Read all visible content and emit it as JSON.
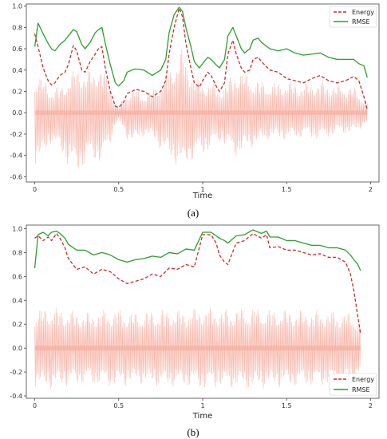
{
  "chart_data": [
    {
      "type": "line",
      "caption": "(a)",
      "xlabel": "Time",
      "ylabel": "",
      "xlim": [
        -0.05,
        2.05
      ],
      "ylim": [
        -0.65,
        1.02
      ],
      "xticks": [
        "0",
        "0.5",
        "1",
        "1.5",
        "2"
      ],
      "xtick_values": [
        0,
        0.5,
        1,
        1.5,
        2
      ],
      "yticks": [
        "-0.6",
        "-0.4",
        "-0.2",
        "0.0",
        "0.2",
        "0.4",
        "0.6",
        "0.8",
        "1.0"
      ],
      "ytick_values": [
        -0.6,
        -0.4,
        -0.2,
        0.0,
        0.2,
        0.4,
        0.6,
        0.8,
        1.0
      ],
      "legend_position": "top-right",
      "series": [
        {
          "name": "Energy",
          "style": "dashed",
          "color": "#d62728",
          "x": [
            0,
            0.02,
            0.05,
            0.08,
            0.1,
            0.12,
            0.15,
            0.18,
            0.2,
            0.23,
            0.25,
            0.28,
            0.3,
            0.33,
            0.36,
            0.38,
            0.4,
            0.42,
            0.45,
            0.48,
            0.5,
            0.53,
            0.55,
            0.58,
            0.6,
            0.65,
            0.7,
            0.75,
            0.78,
            0.8,
            0.83,
            0.86,
            0.88,
            0.9,
            0.93,
            0.95,
            0.98,
            1.0,
            1.03,
            1.05,
            1.08,
            1.1,
            1.13,
            1.15,
            1.18,
            1.2,
            1.23,
            1.25,
            1.28,
            1.3,
            1.33,
            1.35,
            1.4,
            1.45,
            1.5,
            1.55,
            1.6,
            1.65,
            1.7,
            1.75,
            1.8,
            1.85,
            1.9,
            1.93,
            1.96,
            1.98
          ],
          "y": [
            0.74,
            0.62,
            0.42,
            0.3,
            0.26,
            0.28,
            0.35,
            0.38,
            0.45,
            0.63,
            0.58,
            0.4,
            0.38,
            0.48,
            0.55,
            0.6,
            0.62,
            0.42,
            0.2,
            0.06,
            0.05,
            0.1,
            0.18,
            0.2,
            0.22,
            0.2,
            0.15,
            0.2,
            0.3,
            0.55,
            0.8,
            0.98,
            0.9,
            0.65,
            0.42,
            0.28,
            0.24,
            0.3,
            0.38,
            0.35,
            0.25,
            0.2,
            0.28,
            0.55,
            0.68,
            0.55,
            0.42,
            0.38,
            0.4,
            0.5,
            0.52,
            0.48,
            0.4,
            0.38,
            0.32,
            0.3,
            0.28,
            0.32,
            0.35,
            0.3,
            0.28,
            0.3,
            0.34,
            0.3,
            0.15,
            0.03
          ]
        },
        {
          "name": "RMSE",
          "style": "solid",
          "color": "#2ca02c",
          "x": [
            0,
            0.02,
            0.05,
            0.08,
            0.1,
            0.12,
            0.15,
            0.18,
            0.2,
            0.23,
            0.25,
            0.28,
            0.3,
            0.33,
            0.36,
            0.38,
            0.4,
            0.42,
            0.45,
            0.48,
            0.5,
            0.53,
            0.55,
            0.58,
            0.6,
            0.65,
            0.7,
            0.75,
            0.78,
            0.8,
            0.83,
            0.86,
            0.88,
            0.9,
            0.93,
            0.95,
            0.98,
            1.0,
            1.03,
            1.05,
            1.08,
            1.1,
            1.13,
            1.15,
            1.18,
            1.2,
            1.23,
            1.25,
            1.28,
            1.3,
            1.33,
            1.35,
            1.4,
            1.45,
            1.5,
            1.55,
            1.6,
            1.65,
            1.7,
            1.75,
            1.8,
            1.85,
            1.9,
            1.93,
            1.96,
            1.98
          ],
          "y": [
            0.62,
            0.84,
            0.74,
            0.65,
            0.6,
            0.58,
            0.64,
            0.68,
            0.72,
            0.78,
            0.76,
            0.64,
            0.6,
            0.66,
            0.75,
            0.78,
            0.8,
            0.65,
            0.45,
            0.28,
            0.25,
            0.3,
            0.38,
            0.4,
            0.41,
            0.4,
            0.35,
            0.4,
            0.5,
            0.75,
            0.92,
            0.99,
            0.95,
            0.8,
            0.62,
            0.48,
            0.42,
            0.46,
            0.52,
            0.5,
            0.45,
            0.42,
            0.5,
            0.72,
            0.8,
            0.72,
            0.6,
            0.56,
            0.6,
            0.68,
            0.7,
            0.66,
            0.6,
            0.58,
            0.6,
            0.56,
            0.54,
            0.55,
            0.56,
            0.52,
            0.5,
            0.5,
            0.5,
            0.46,
            0.44,
            0.33
          ]
        }
      ],
      "waveform_envelope": {
        "color": "#f4a090",
        "x": [
          0,
          0.05,
          0.1,
          0.15,
          0.2,
          0.25,
          0.3,
          0.35,
          0.4,
          0.45,
          0.48,
          0.5,
          0.52,
          0.55,
          0.6,
          0.65,
          0.7,
          0.75,
          0.8,
          0.85,
          0.88,
          0.9,
          0.95,
          1.0,
          1.05,
          1.1,
          1.15,
          1.2,
          1.25,
          1.3,
          1.4,
          1.5,
          1.6,
          1.7,
          1.8,
          1.9,
          1.98
        ],
        "upper": [
          0.35,
          0.33,
          0.22,
          0.25,
          0.32,
          0.45,
          0.38,
          0.42,
          0.45,
          0.25,
          0.1,
          0.06,
          0.12,
          0.2,
          0.22,
          0.18,
          0.22,
          0.3,
          0.4,
          0.55,
          0.62,
          0.5,
          0.35,
          0.28,
          0.3,
          0.22,
          0.3,
          0.42,
          0.38,
          0.32,
          0.28,
          0.3,
          0.27,
          0.3,
          0.26,
          0.25,
          0.1
        ],
        "lower": [
          -0.5,
          -0.45,
          -0.28,
          -0.4,
          -0.5,
          -0.6,
          -0.5,
          -0.45,
          -0.5,
          -0.3,
          -0.12,
          -0.08,
          -0.15,
          -0.25,
          -0.3,
          -0.22,
          -0.25,
          -0.35,
          -0.45,
          -0.5,
          -0.6,
          -0.5,
          -0.45,
          -0.4,
          -0.35,
          -0.28,
          -0.35,
          -0.42,
          -0.38,
          -0.32,
          -0.25,
          -0.26,
          -0.23,
          -0.26,
          -0.2,
          -0.2,
          -0.1
        ]
      }
    },
    {
      "type": "line",
      "caption": "(b)",
      "xlabel": "Time",
      "ylabel": "",
      "xlim": [
        -0.05,
        2.05
      ],
      "ylim": [
        -0.42,
        1.03
      ],
      "xticks": [
        "0",
        "0.5",
        "1",
        "1.5",
        "2"
      ],
      "xtick_values": [
        0,
        0.5,
        1,
        1.5,
        2
      ],
      "yticks": [
        "-0.4",
        "-0.2",
        "0.0",
        "0.2",
        "0.4",
        "0.6",
        "0.8",
        "1.0"
      ],
      "ytick_values": [
        -0.4,
        -0.2,
        0.0,
        0.2,
        0.4,
        0.6,
        0.8,
        1.0
      ],
      "legend_position": "bottom-right",
      "series": [
        {
          "name": "Energy",
          "style": "dashed",
          "color": "#d62728",
          "x": [
            0,
            0.02,
            0.05,
            0.08,
            0.1,
            0.13,
            0.15,
            0.18,
            0.2,
            0.25,
            0.3,
            0.35,
            0.4,
            0.45,
            0.5,
            0.55,
            0.6,
            0.65,
            0.7,
            0.75,
            0.8,
            0.85,
            0.9,
            0.95,
            1.0,
            1.05,
            1.08,
            1.1,
            1.13,
            1.15,
            1.2,
            1.25,
            1.3,
            1.35,
            1.38,
            1.4,
            1.45,
            1.5,
            1.55,
            1.6,
            1.65,
            1.7,
            1.75,
            1.8,
            1.85,
            1.88,
            1.9,
            1.92,
            1.94
          ],
          "y": [
            0.92,
            0.94,
            0.9,
            0.93,
            0.9,
            0.96,
            0.92,
            0.84,
            0.75,
            0.66,
            0.68,
            0.62,
            0.66,
            0.64,
            0.58,
            0.54,
            0.56,
            0.58,
            0.62,
            0.6,
            0.67,
            0.66,
            0.7,
            0.68,
            0.95,
            0.95,
            0.88,
            0.78,
            0.72,
            0.7,
            0.88,
            0.9,
            0.96,
            0.92,
            0.95,
            0.84,
            0.85,
            0.82,
            0.82,
            0.8,
            0.78,
            0.79,
            0.76,
            0.76,
            0.72,
            0.62,
            0.48,
            0.3,
            0.12
          ]
        },
        {
          "name": "RMSE",
          "style": "solid",
          "color": "#2ca02c",
          "x": [
            0,
            0.02,
            0.05,
            0.08,
            0.1,
            0.13,
            0.15,
            0.18,
            0.2,
            0.25,
            0.3,
            0.35,
            0.4,
            0.45,
            0.5,
            0.55,
            0.6,
            0.65,
            0.7,
            0.75,
            0.8,
            0.85,
            0.9,
            0.95,
            1.0,
            1.05,
            1.08,
            1.1,
            1.13,
            1.15,
            1.2,
            1.25,
            1.3,
            1.35,
            1.38,
            1.4,
            1.45,
            1.5,
            1.55,
            1.6,
            1.65,
            1.7,
            1.75,
            1.8,
            1.85,
            1.88,
            1.9,
            1.92,
            1.94
          ],
          "y": [
            0.67,
            0.95,
            0.97,
            0.94,
            0.97,
            0.98,
            0.96,
            0.92,
            0.87,
            0.82,
            0.82,
            0.78,
            0.8,
            0.78,
            0.74,
            0.72,
            0.74,
            0.75,
            0.77,
            0.76,
            0.8,
            0.79,
            0.83,
            0.82,
            0.97,
            0.97,
            0.94,
            0.92,
            0.9,
            0.88,
            0.94,
            0.95,
            0.99,
            0.96,
            0.98,
            0.93,
            0.93,
            0.9,
            0.9,
            0.88,
            0.86,
            0.86,
            0.84,
            0.84,
            0.82,
            0.78,
            0.74,
            0.71,
            0.65
          ]
        }
      ],
      "waveform_envelope": {
        "color": "#f4a090",
        "x": [
          0,
          0.1,
          0.2,
          0.3,
          0.4,
          0.5,
          0.6,
          0.7,
          0.8,
          0.9,
          1.0,
          1.1,
          1.2,
          1.3,
          1.4,
          1.5,
          1.6,
          1.7,
          1.8,
          1.9,
          1.94
        ],
        "upper": [
          0.33,
          0.35,
          0.32,
          0.3,
          0.32,
          0.33,
          0.3,
          0.32,
          0.33,
          0.32,
          0.35,
          0.33,
          0.34,
          0.35,
          0.33,
          0.33,
          0.32,
          0.32,
          0.31,
          0.3,
          0.2
        ],
        "lower": [
          -0.33,
          -0.35,
          -0.32,
          -0.3,
          -0.32,
          -0.33,
          -0.3,
          -0.32,
          -0.33,
          -0.32,
          -0.35,
          -0.33,
          -0.34,
          -0.35,
          -0.33,
          -0.33,
          -0.32,
          -0.32,
          -0.31,
          -0.3,
          -0.2
        ]
      }
    }
  ]
}
